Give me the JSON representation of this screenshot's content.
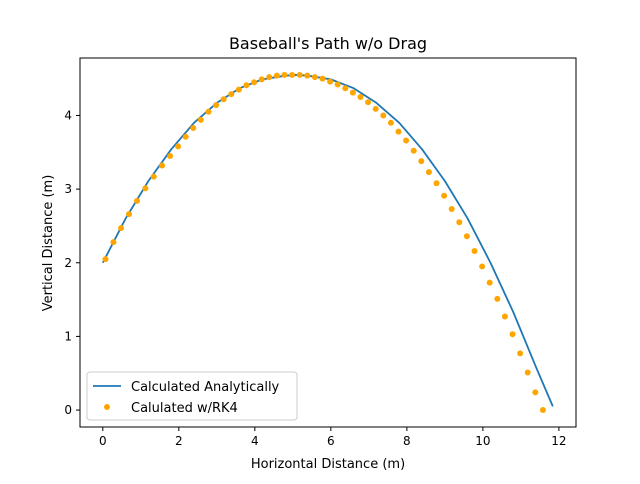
{
  "chart_data": {
    "type": "line",
    "title": "Baseball's Path w/o Drag",
    "xlabel": "Horizontal Distance (m)",
    "ylabel": "Vertical Distance (m)",
    "xlim": [
      -0.6,
      12.45
    ],
    "ylim": [
      -0.23,
      4.78
    ],
    "xticks": [
      0,
      2,
      4,
      6,
      8,
      10,
      12
    ],
    "yticks": [
      0,
      1,
      2,
      3,
      4
    ],
    "grid": false,
    "legend_position": "lower-left",
    "series": [
      {
        "name": "Calculated Analytically",
        "style": "line",
        "color": "#1f77b4",
        "x": [
          0.0,
          0.6,
          1.2,
          1.8,
          2.4,
          3.0,
          3.6,
          4.2,
          4.8,
          5.1,
          5.4,
          6.0,
          6.6,
          7.2,
          7.8,
          8.4,
          9.0,
          9.6,
          10.2,
          10.8,
          11.4,
          11.84
        ],
        "y": [
          2.0,
          2.6,
          3.11,
          3.54,
          3.9,
          4.17,
          4.37,
          4.49,
          4.54,
          4.55,
          4.54,
          4.49,
          4.37,
          4.17,
          3.9,
          3.54,
          3.11,
          2.6,
          2.0,
          1.33,
          0.58,
          0.05
        ]
      },
      {
        "name": "Calulated w/RK4",
        "style": "scatter",
        "color": "#ffa500",
        "x": [
          0.07,
          0.28,
          0.48,
          0.69,
          0.9,
          1.12,
          1.34,
          1.56,
          1.77,
          1.98,
          2.18,
          2.38,
          2.58,
          2.78,
          2.98,
          3.18,
          3.38,
          3.58,
          3.78,
          3.98,
          4.18,
          4.38,
          4.58,
          4.78,
          4.98,
          5.18,
          5.38,
          5.58,
          5.78,
          5.98,
          6.18,
          6.38,
          6.58,
          6.78,
          6.98,
          7.18,
          7.38,
          7.58,
          7.78,
          7.98,
          8.18,
          8.38,
          8.58,
          8.78,
          8.98,
          9.18,
          9.38,
          9.58,
          9.78,
          9.98,
          10.18,
          10.38,
          10.58,
          10.78,
          10.98,
          11.18,
          11.38,
          11.58
        ],
        "y": [
          2.05,
          2.28,
          2.47,
          2.66,
          2.84,
          3.01,
          3.17,
          3.32,
          3.45,
          3.58,
          3.71,
          3.83,
          3.94,
          4.05,
          4.14,
          4.22,
          4.29,
          4.35,
          4.41,
          4.45,
          4.49,
          4.52,
          4.54,
          4.55,
          4.55,
          4.55,
          4.54,
          4.52,
          4.5,
          4.46,
          4.42,
          4.37,
          4.31,
          4.25,
          4.18,
          4.09,
          4.0,
          3.9,
          3.78,
          3.66,
          3.52,
          3.38,
          3.23,
          3.08,
          2.91,
          2.73,
          2.55,
          2.36,
          2.16,
          1.95,
          1.73,
          1.51,
          1.27,
          1.03,
          0.77,
          0.51,
          0.24,
          0.0
        ]
      }
    ]
  }
}
